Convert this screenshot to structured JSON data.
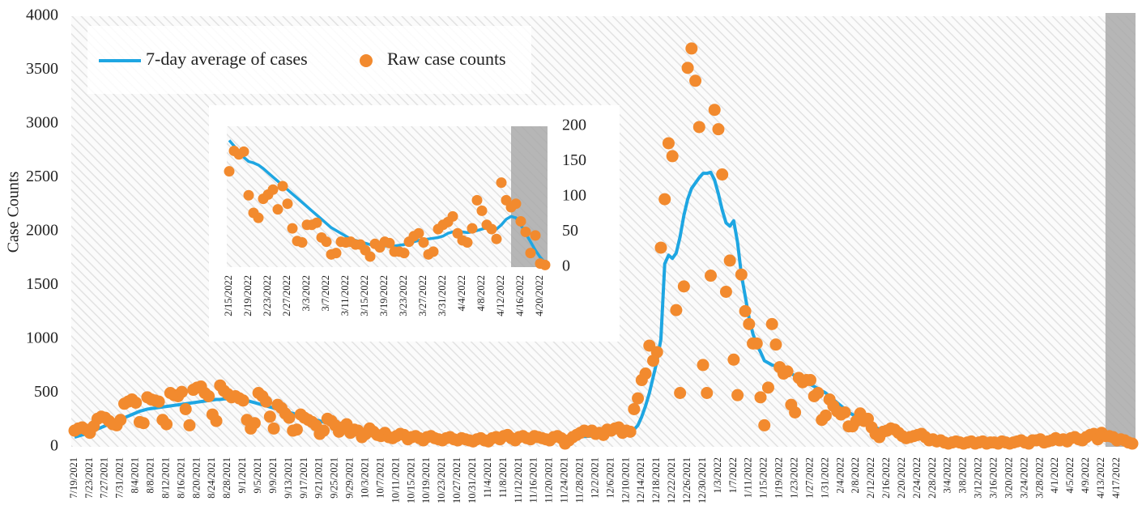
{
  "chart_data": [
    {
      "type": "line",
      "ylabel": "Case Counts",
      "ylim": [
        0,
        4000
      ],
      "yticks": [
        0,
        500,
        1000,
        1500,
        2000,
        2500,
        3000,
        3500,
        4000
      ],
      "grid": false,
      "legend": "top-left",
      "categories": [
        "7/19/2021",
        null,
        null,
        null,
        "7/23/2021",
        null,
        null,
        null,
        "7/27/2021",
        null,
        null,
        null,
        "7/31/2021",
        null,
        null,
        null,
        "8/4/2021",
        null,
        null,
        null,
        "8/8/2021",
        null,
        null,
        null,
        "8/12/2021",
        null,
        null,
        null,
        "8/16/2021",
        null,
        null,
        null,
        "8/20/2021",
        null,
        null,
        null,
        "8/24/2021",
        null,
        null,
        null,
        "8/28/2021",
        null,
        null,
        null,
        "9/1/2021",
        null,
        null,
        null,
        "9/5/2021",
        null,
        null,
        null,
        "9/9/2021",
        null,
        null,
        null,
        "9/13/2021",
        null,
        null,
        null,
        "9/17/2021",
        null,
        null,
        null,
        "9/21/2021",
        null,
        null,
        null,
        "9/25/2021",
        null,
        null,
        null,
        "9/29/2021",
        null,
        null,
        null,
        "10/3/2021",
        null,
        null,
        null,
        "10/7/2021",
        null,
        null,
        null,
        "10/11/2021",
        null,
        null,
        null,
        "10/15/2021",
        null,
        null,
        null,
        "10/19/2021",
        null,
        null,
        null,
        "10/23/2021",
        null,
        null,
        null,
        "10/27/2021",
        null,
        null,
        null,
        "10/31/2021",
        null,
        null,
        null,
        "11/4/2021",
        null,
        null,
        null,
        "11/8/2021",
        null,
        null,
        null,
        "11/12/2021",
        null,
        null,
        null,
        "11/16/2021",
        null,
        null,
        null,
        "11/20/2021",
        null,
        null,
        null,
        "11/24/2021",
        null,
        null,
        null,
        "11/28/2021",
        null,
        null,
        null,
        "12/2/2021",
        null,
        null,
        null,
        "12/6/2021",
        null,
        null,
        null,
        "12/10/2021",
        null,
        null,
        null,
        "12/14/2021",
        null,
        null,
        null,
        "12/18/2021",
        null,
        null,
        null,
        "12/22/2021",
        null,
        null,
        null,
        "12/26/2021",
        null,
        null,
        null,
        "12/30/2021",
        null,
        null,
        null,
        "1/3/2022",
        null,
        null,
        null,
        "1/7/2022",
        null,
        null,
        null,
        "1/11/2022",
        null,
        null,
        null,
        "1/15/2022",
        null,
        null,
        null,
        "1/19/2022",
        null,
        null,
        null,
        "1/23/2022",
        null,
        null,
        null,
        "1/27/2022",
        null,
        null,
        null,
        "1/31/2022",
        null,
        null,
        null,
        "2/4/2022",
        null,
        null,
        null,
        "2/8/2022",
        null,
        null,
        null,
        "2/12/2022",
        null,
        null,
        null,
        "2/16/2022",
        null,
        null,
        null,
        "2/20/2022",
        null,
        null,
        null,
        "2/24/2022",
        null,
        null,
        null,
        "2/28/2022",
        null,
        null,
        null,
        "3/4/2022",
        null,
        null,
        null,
        "3/8/2022",
        null,
        null,
        null,
        "3/12/2022",
        null,
        null,
        null,
        "3/16/2022",
        null,
        null,
        null,
        "3/20/2022",
        null,
        null,
        null,
        "3/24/2022",
        null,
        null,
        null,
        "3/28/2022",
        null,
        null,
        null,
        "4/1/2022",
        null,
        null,
        null,
        "4/5/2022",
        null,
        null,
        null,
        "4/9/2022",
        null,
        null,
        null,
        "4/13/2022",
        null,
        null,
        null,
        "4/17/2022",
        null,
        null,
        null,
        null
      ],
      "series": [
        {
          "name": "7-day average of cases",
          "color": "#1ea6e2",
          "marker": "none",
          "values": [
            90,
            100,
            110,
            120,
            135,
            150,
            165,
            180,
            195,
            210,
            225,
            240,
            255,
            270,
            285,
            300,
            315,
            330,
            340,
            350,
            355,
            360,
            365,
            370,
            375,
            380,
            385,
            390,
            395,
            400,
            405,
            410,
            415,
            420,
            425,
            430,
            435,
            440,
            440,
            445,
            445,
            440,
            440,
            440,
            440,
            430,
            420,
            410,
            400,
            390,
            380,
            370,
            360,
            350,
            340,
            330,
            320,
            310,
            300,
            290,
            280,
            270,
            260,
            250,
            240,
            230,
            220,
            210,
            200,
            190,
            185,
            180,
            175,
            170,
            165,
            160,
            155,
            150,
            145,
            140,
            135,
            130,
            125,
            120,
            118,
            116,
            114,
            112,
            110,
            108,
            106,
            104,
            102,
            100,
            98,
            96,
            94,
            92,
            90,
            90,
            88,
            88,
            86,
            86,
            85,
            85,
            84,
            83,
            82,
            82,
            81,
            80,
            80,
            80,
            80,
            80,
            80,
            80,
            81,
            82,
            83,
            84,
            85,
            86,
            87,
            88,
            89,
            90,
            90,
            90,
            90,
            92,
            94,
            96,
            98,
            100,
            105,
            110,
            115,
            120,
            125,
            130,
            135,
            140,
            145,
            150,
            160,
            200,
            280,
            380,
            500,
            650,
            800,
            1000,
            1700,
            1780,
            1750,
            1800,
            1950,
            2150,
            2300,
            2400,
            2450,
            2500,
            2540,
            2540,
            2550,
            2480,
            2350,
            2200,
            2080,
            2050,
            2100,
            1900,
            1600,
            1400,
            1200,
            1050,
            950,
            880,
            800,
            780,
            760,
            750,
            740,
            720,
            700,
            680,
            660,
            640,
            620,
            600,
            580,
            560,
            540,
            520,
            500,
            470,
            440,
            410,
            380,
            350,
            320,
            300,
            280,
            260,
            240,
            220,
            200,
            180,
            165,
            150,
            140,
            130,
            120,
            110,
            100,
            95,
            90,
            85,
            80,
            75,
            70,
            65,
            60,
            58,
            56,
            54,
            52,
            50,
            48,
            46,
            45,
            44,
            43,
            42,
            41,
            40,
            40,
            40,
            40,
            40,
            40,
            40,
            41,
            42,
            44,
            46,
            48,
            50,
            52,
            54,
            56,
            58,
            60,
            62,
            64,
            66,
            68,
            70,
            72,
            72,
            72,
            72,
            74,
            75,
            75,
            78,
            75,
            70,
            65,
            60,
            55,
            50,
            45,
            40,
            35
          ]
        },
        {
          "name": "Raw case counts",
          "color": "#f28a2e",
          "marker": "circle",
          "values": [
            150,
            170,
            180,
            160,
            130,
            190,
            260,
            280,
            270,
            240,
            210,
            200,
            250,
            400,
            420,
            440,
            410,
            230,
            220,
            460,
            440,
            430,
            420,
            250,
            210,
            500,
            480,
            470,
            510,
            350,
            200,
            530,
            550,
            560,
            500,
            470,
            300,
            240,
            570,
            520,
            490,
            460,
            470,
            450,
            430,
            250,
            170,
            220,
            500,
            470,
            420,
            280,
            170,
            390,
            360,
            310,
            270,
            150,
            160,
            300,
            270,
            250,
            230,
            200,
            120,
            150,
            260,
            240,
            200,
            140,
            180,
            210,
            130,
            160,
            150,
            90,
            120,
            170,
            140,
            110,
            100,
            130,
            90,
            80,
            100,
            120,
            110,
            70,
            90,
            100,
            80,
            60,
            90,
            100,
            80,
            70,
            60,
            80,
            90,
            70,
            60,
            80,
            70,
            60,
            50,
            70,
            80,
            60,
            50,
            80,
            90,
            70,
            100,
            110,
            80,
            60,
            90,
            100,
            80,
            70,
            100,
            90,
            80,
            70,
            60,
            90,
            100,
            80,
            30,
            60,
            90,
            110,
            130,
            150,
            140,
            150,
            120,
            130,
            110,
            160,
            150,
            170,
            180,
            130,
            150,
            140,
            350,
            450,
            620,
            680,
            940,
            800,
            880,
            1850,
            2300,
            2820,
            2700,
            1270,
            500,
            1490,
            3520,
            3700,
            3400,
            2970,
            760,
            500,
            1590,
            3130,
            2950,
            2530,
            1440,
            1730,
            810,
            480,
            1600,
            1260,
            1140,
            960,
            960,
            460,
            200,
            550,
            1140,
            950,
            740,
            680,
            700,
            390,
            320,
            640,
            600,
            620,
            620,
            470,
            500,
            250,
            290,
            440,
            380,
            330,
            300,
            320,
            190,
            190,
            240,
            310,
            240,
            260,
            180,
            120,
            90,
            140,
            150,
            170,
            160,
            130,
            100,
            80,
            90,
            100,
            110,
            120,
            90,
            60,
            70,
            50,
            60,
            40,
            30,
            40,
            50,
            40,
            30,
            40,
            50,
            30,
            40,
            50,
            30,
            40,
            40,
            30,
            50,
            40,
            30,
            40,
            50,
            60,
            40,
            30,
            60,
            60,
            70,
            40,
            50,
            60,
            80,
            60,
            70,
            50,
            80,
            90,
            70,
            60,
            90,
            110,
            120,
            70,
            130,
            100,
            100,
            90,
            60,
            70,
            60,
            40,
            30
          ]
        }
      ]
    },
    {
      "type": "line",
      "ylim": [
        0,
        200
      ],
      "yticks": [
        0,
        50,
        100,
        150,
        200
      ],
      "grid": false,
      "yaxis_side": "right",
      "categories": [
        "2/15/2022",
        null,
        null,
        null,
        "2/19/2022",
        null,
        null,
        null,
        "2/23/2022",
        null,
        null,
        null,
        "2/27/2022",
        null,
        null,
        null,
        "3/3/2022",
        null,
        null,
        null,
        "3/7/2022",
        null,
        null,
        null,
        "3/11/2022",
        null,
        null,
        null,
        "3/15/2022",
        null,
        null,
        null,
        "3/19/2022",
        null,
        null,
        null,
        "3/23/2022",
        null,
        null,
        null,
        "3/27/2022",
        null,
        null,
        null,
        "3/31/2022",
        null,
        null,
        null,
        "4/4/2022",
        null,
        null,
        null,
        "4/8/2022",
        null,
        null,
        null,
        "4/12/2022",
        null,
        null,
        null,
        "4/16/2022",
        null,
        null,
        null,
        "4/20/2022",
        null
      ],
      "series": [
        {
          "color": "#1ea6e2",
          "marker": "none",
          "values": [
            180,
            172,
            164,
            156,
            150,
            148,
            145,
            140,
            134,
            128,
            122,
            116,
            110,
            104,
            98,
            92,
            86,
            80,
            74,
            68,
            62,
            56,
            52,
            48,
            44,
            40,
            38,
            36,
            34,
            32,
            31,
            30,
            30,
            30,
            30,
            31,
            32,
            34,
            36,
            38,
            39,
            40,
            41,
            42,
            44,
            48,
            50,
            51,
            50,
            49,
            50,
            52,
            54,
            56,
            55,
            54,
            60,
            68,
            72,
            70,
            60,
            48,
            36,
            24,
            14,
            6
          ]
        },
        {
          "color": "#f28a2e",
          "marker": "circle",
          "values": [
            136,
            165,
            160,
            164,
            102,
            77,
            70,
            97,
            103,
            110,
            82,
            115,
            90,
            55,
            37,
            35,
            60,
            60,
            63,
            42,
            36,
            18,
            20,
            36,
            35,
            36,
            32,
            32,
            24,
            15,
            33,
            28,
            36,
            34,
            22,
            22,
            20,
            36,
            44,
            48,
            35,
            18,
            22,
            54,
            60,
            64,
            72,
            48,
            38,
            35,
            55,
            95,
            80,
            60,
            54,
            40,
            120,
            95,
            85,
            90,
            65,
            50,
            20,
            45,
            5,
            3
          ]
        }
      ]
    }
  ]
}
